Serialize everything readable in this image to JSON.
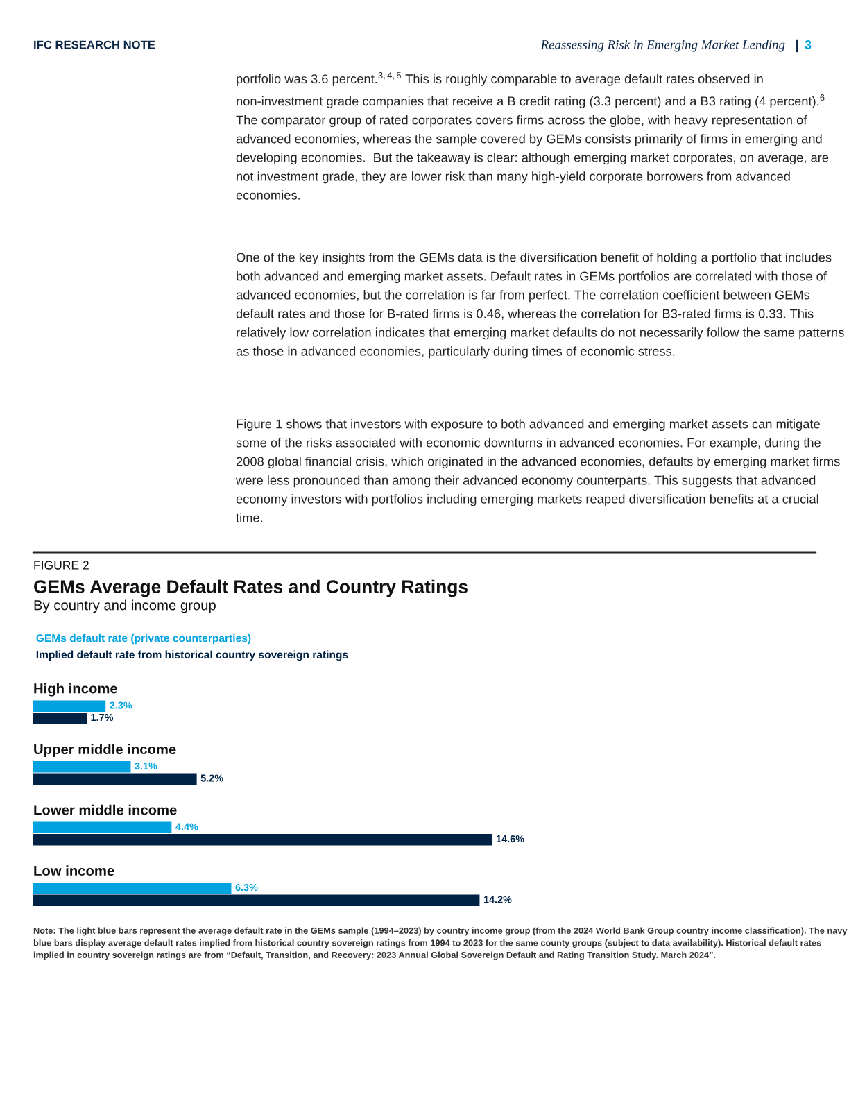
{
  "chart_data": {
    "type": "bar",
    "orientation": "horizontal",
    "title": "GEMs Average Default Rates and Country Ratings",
    "subtitle": "By country and income group",
    "categories": [
      "High income",
      "Upper middle income",
      "Lower middle income",
      "Low income"
    ],
    "series": [
      {
        "name": "GEMs default rate (private counterparties)",
        "color": "#00a3e0",
        "values": [
          2.3,
          3.1,
          4.4,
          6.3
        ],
        "value_labels": [
          "2.3%",
          "3.1%",
          "4.4%",
          "6.3%"
        ]
      },
      {
        "name": "Implied default rate from historical country sovereign ratings",
        "color": "#002244",
        "values": [
          1.7,
          5.2,
          14.6,
          14.2
        ],
        "value_labels": [
          "1.7%",
          "5.2%",
          "14.6%",
          "14.2%"
        ]
      }
    ],
    "legend": "top left",
    "annotations": [
      "IFC RESEARCH NOTE",
      "Reassessing Risk in Emerging Market Lending",
      "3",
      "portfolio was 3.6 percent.$^{3,4,5}$ This is roughly comparable to average default rates observed in non-investment grade companies that receive a B credit rating (3.3 percent) and a B3 rating (4 percent).$^{6}$ The comparator group of rated corporates covers firms across the globe, with heavy representation of advanced economies, whereas the sample covered by GEMs consists primarily of firms in emerging and developing economies.  But the takeaway is clear: although emerging market corporates, on average, are not investment grade, they are lower risk than many high-yield corporate borrowers from advanced economies.",
      "One of the key insights from the GEMs data is the diversification benefit of holding a portfolio that includes both advanced and emerging market assets. Default rates in GEMs portfolios are correlated with those of advanced economies, but the correlation is far from perfect. The correlation coefficient between GEMs default rates and those for B-rated firms is 0.46, whereas the correlation for B3-rated firms is 0.33. This relatively low correlation indicates that emerging market defaults do not necessarily follow the same patterns as those in advanced economies, particularly during times of economic stress.",
      "Figure 1 shows that investors with exposure to both advanced and emerging market assets can mitigate some of the risks associated with economic downturns in advanced economies. For example, during the 2008 global financial crisis, which originated in the advanced economies, defaults by emerging market firms were less pronounced than among their advanced economy counterparts. This suggests that advanced economy investors with portfolios including emerging markets reaped diversification benefits at a crucial time.",
      "FIGURE 2",
      "Note: The light blue bars represent the average default rate in the GEMs sample (1994–2023) by country income group (from the 2024 World Bank Group country income classification). The navy blue bars display average default rates implied from historical country sovereign ratings from 1994 to 2023 for the same county groups (subject to data availability). Historical default rates implied in country sovereign ratings are from “Default, Transition, and Recovery: 2023 Annual Global Sovereign Default and Rating Transition Study. March 2024”.",
      "|"
    ]
  }
}
